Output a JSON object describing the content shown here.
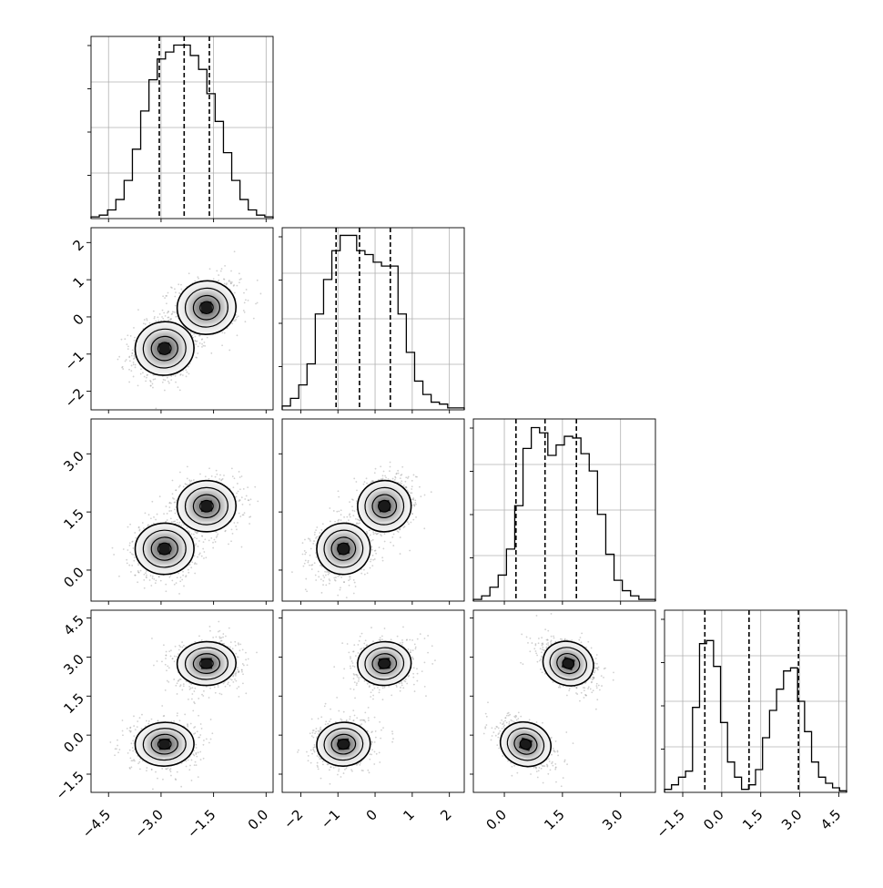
{
  "chart_data": {
    "type": "corner",
    "title": "",
    "parameters": 4,
    "diagonal_histograms": [
      {
        "param_index": 0,
        "range": [
          -5.0,
          0.2
        ],
        "counts": [
          1,
          2,
          5,
          11,
          22,
          40,
          62,
          80,
          92,
          96,
          100,
          100,
          94,
          86,
          72,
          56,
          38,
          22,
          11,
          5,
          2,
          1
        ],
        "quantiles": [
          -3.05,
          -2.34,
          -1.62
        ],
        "ylim": [
          0,
          105
        ]
      },
      {
        "param_index": 1,
        "range": [
          -2.5,
          2.4
        ],
        "counts": [
          2,
          6,
          13,
          24,
          50,
          68,
          83,
          91,
          91,
          83,
          81,
          77,
          75,
          75,
          50,
          30,
          15,
          8,
          4,
          3,
          1,
          1
        ],
        "quantiles": [
          -1.05,
          -0.42,
          0.41
        ],
        "ylim": [
          0,
          95
        ]
      },
      {
        "param_index": 2,
        "range": [
          -0.8,
          3.9
        ],
        "counts": [
          1,
          3,
          8,
          15,
          30,
          55,
          88,
          100,
          97,
          84,
          90,
          95,
          94,
          85,
          75,
          50,
          27,
          12,
          6,
          3,
          1,
          1
        ],
        "quantiles": [
          0.3,
          1.05,
          1.86
        ],
        "ylim": [
          0,
          105
        ]
      },
      {
        "param_index": 3,
        "range": [
          -2.2,
          4.8
        ],
        "counts": [
          2,
          5,
          10,
          14,
          56,
          98,
          100,
          83,
          46,
          20,
          10,
          2,
          5,
          15,
          36,
          54,
          68,
          80,
          82,
          60,
          40,
          20,
          10,
          6,
          3,
          1
        ],
        "quantiles": [
          -0.65,
          1.05,
          2.95
        ],
        "ylim": [
          0,
          120
        ]
      }
    ],
    "panel_ranges": [
      [
        -5.0,
        0.2
      ],
      [
        -2.5,
        2.4
      ],
      [
        -0.8,
        3.9
      ],
      [
        -2.2,
        4.8
      ]
    ],
    "bimodal_clusters": [
      {
        "p0": -2.9,
        "p1": -0.85,
        "p2": 0.55,
        "p3": -0.35,
        "weight": 0.5
      },
      {
        "p0": -1.7,
        "p1": 0.25,
        "p2": 1.65,
        "p3": 2.75,
        "weight": 0.5
      }
    ],
    "x_tick_labels": [
      {
        "values": [
          -4.5,
          -3.0,
          -1.5,
          0.0
        ],
        "labels": [
          "−4.5",
          "−3.0",
          "−1.5",
          "0.0"
        ]
      },
      {
        "values": [
          -2,
          -1,
          0,
          1,
          2
        ],
        "labels": [
          "−2",
          "−1",
          "0",
          "1",
          "2"
        ]
      },
      {
        "values": [
          0.0,
          1.5,
          3.0
        ],
        "labels": [
          "0.0",
          "1.5",
          "3.0"
        ]
      },
      {
        "values": [
          -1.5,
          0.0,
          1.5,
          3.0,
          4.5
        ],
        "labels": [
          "−1.5",
          "0.0",
          "1.5",
          "3.0",
          "4.5"
        ]
      }
    ],
    "y_tick_labels": [
      null,
      {
        "values": [
          -2,
          -1,
          0,
          1,
          2
        ],
        "labels": [
          "−2",
          "−1",
          "0",
          "1",
          "2"
        ]
      },
      {
        "values": [
          0.0,
          1.5,
          3.0
        ],
        "labels": [
          "0.0",
          "1.5",
          "3.0"
        ]
      },
      {
        "values": [
          -1.5,
          0.0,
          1.5,
          3.0,
          4.5
        ],
        "labels": [
          "−1.5",
          "0.0",
          "1.5",
          "3.0",
          "4.5"
        ]
      }
    ],
    "grid": true,
    "xlabel": "",
    "ylabel": "",
    "colors": {
      "line": "#000000",
      "grid": "#b0b0b0",
      "scatter": "#9a9a9a",
      "density_dark": "#1a1a1a",
      "density_light": "#f5f5f5"
    }
  }
}
